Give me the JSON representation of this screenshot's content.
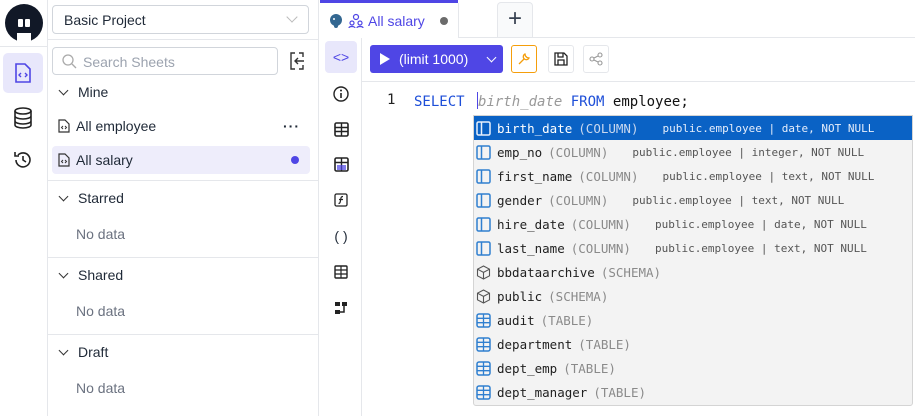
{
  "sidebar": {
    "project": "Basic Project",
    "search_placeholder": "Search Sheets",
    "sections": [
      {
        "label": "Mine"
      },
      {
        "label": "Starred",
        "empty": "No data"
      },
      {
        "label": "Shared",
        "empty": "No data"
      },
      {
        "label": "Draft",
        "empty": "No data"
      }
    ],
    "mine_items": [
      {
        "label": "All employee"
      },
      {
        "label": "All salary"
      }
    ]
  },
  "tabs": [
    {
      "label": "All salary",
      "unsaved": true
    }
  ],
  "toolbar": {
    "run_label": "(limit 1000)"
  },
  "editor": {
    "line_number": "1",
    "kw_select": "SELECT",
    "ghost": "birth_date",
    "kw_from": "FROM",
    "rest": "employee;"
  },
  "suggestions": [
    {
      "label": "birth_date",
      "kind": "(COLUMN)",
      "detail": "public.employee | date, NOT NULL",
      "icon": "column-icon",
      "selected": true
    },
    {
      "label": "emp_no",
      "kind": "(COLUMN)",
      "detail": "public.employee | integer, NOT NULL",
      "icon": "column-icon"
    },
    {
      "label": "first_name",
      "kind": "(COLUMN)",
      "detail": "public.employee | text, NOT NULL",
      "icon": "column-icon"
    },
    {
      "label": "gender",
      "kind": "(COLUMN)",
      "detail": "public.employee | text, NOT NULL",
      "icon": "column-icon"
    },
    {
      "label": "hire_date",
      "kind": "(COLUMN)",
      "detail": "public.employee | date, NOT NULL",
      "icon": "column-icon"
    },
    {
      "label": "last_name",
      "kind": "(COLUMN)",
      "detail": "public.employee | text, NOT NULL",
      "icon": "column-icon"
    },
    {
      "label": "bbdataarchive",
      "kind": "(SCHEMA)",
      "icon": "schema-icon"
    },
    {
      "label": "public",
      "kind": "(SCHEMA)",
      "icon": "schema-icon"
    },
    {
      "label": "audit",
      "kind": "(TABLE)",
      "icon": "table-icon"
    },
    {
      "label": "department",
      "kind": "(TABLE)",
      "icon": "table-icon"
    },
    {
      "label": "dept_emp",
      "kind": "(TABLE)",
      "icon": "table-icon"
    },
    {
      "label": "dept_manager",
      "kind": "(TABLE)",
      "icon": "table-icon"
    }
  ],
  "colors": {
    "accent": "#4f46e5",
    "selected": "#0a62c5",
    "wrench": "#f59e0b"
  }
}
